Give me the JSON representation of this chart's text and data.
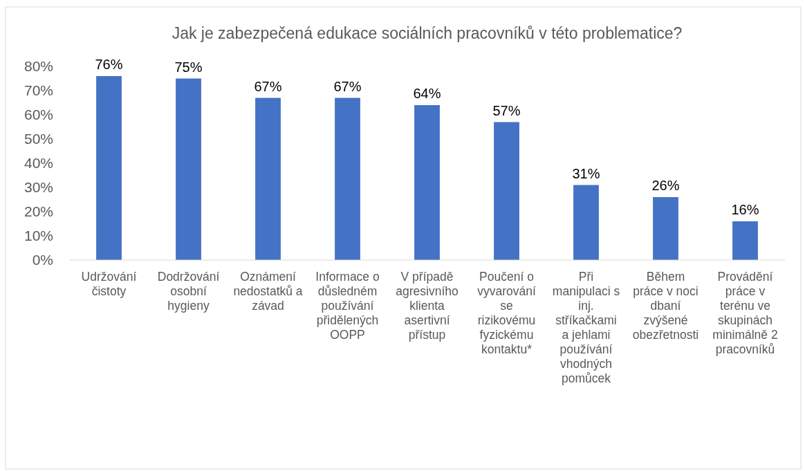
{
  "chart_data": {
    "type": "bar",
    "title": "Jak je zabezpečená edukace sociálních pracovníků v této problematice?",
    "categories": [
      "Udržování čistoty",
      "Dodržování osobní hygieny",
      "Oznámení nedostatků a závad",
      "Informace o důsledném používání přidělených OOPP",
      "V případě agresivního klienta asertivní přístup",
      "Poučení o vyvarování se rizikovému fyzickému kontaktu*",
      "Při manipulaci s inj. stříkačkami a jehlami používání vhodných pomůcek",
      "Během práce v noci dbaní zvýšené obezřetnosti",
      "Provádění práce v terénu ve skupinách minimálně 2 pracovníků"
    ],
    "values": [
      76,
      75,
      67,
      67,
      64,
      57,
      31,
      26,
      16
    ],
    "value_labels": [
      "76%",
      "75%",
      "67%",
      "67%",
      "64%",
      "57%",
      "31%",
      "26%",
      "16%"
    ],
    "color": "#4472c4",
    "ylim": [
      0,
      80
    ],
    "yticks": [
      {
        "value": 0,
        "label": "0%"
      },
      {
        "value": 10,
        "label": "10%"
      },
      {
        "value": 20,
        "label": "20%"
      },
      {
        "value": 30,
        "label": "30%"
      },
      {
        "value": 40,
        "label": "40%"
      },
      {
        "value": 50,
        "label": "50%"
      },
      {
        "value": 60,
        "label": "60%"
      },
      {
        "value": 70,
        "label": "70%"
      },
      {
        "value": 80,
        "label": "80%"
      }
    ],
    "grid": false
  }
}
